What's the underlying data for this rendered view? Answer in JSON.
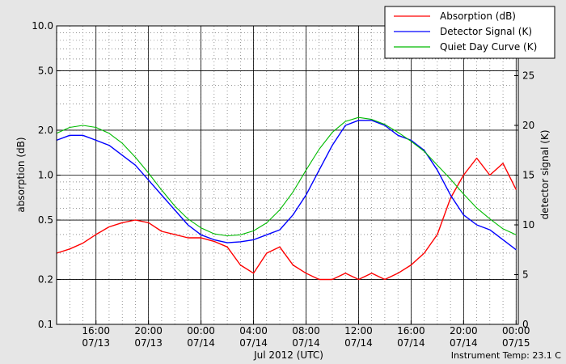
{
  "chart_data": {
    "type": "line",
    "title": "",
    "xlabel": "Jul 2012 (UTC)",
    "ylabel_left": "absorption (dB)",
    "ylabel_right": "detector signal (K)",
    "footer": "Instrument Temp: 23.1 C",
    "x_range": [
      "2012-07-13 13:00",
      "2012-07-15 00:10"
    ],
    "x_ticks": [
      {
        "time": "16:00",
        "date": "07/13"
      },
      {
        "time": "20:00",
        "date": "07/13"
      },
      {
        "time": "00:00",
        "date": "07/14"
      },
      {
        "time": "04:00",
        "date": "07/14"
      },
      {
        "time": "08:00",
        "date": "07/14"
      },
      {
        "time": "12:00",
        "date": "07/14"
      },
      {
        "time": "16:00",
        "date": "07/14"
      },
      {
        "time": "20:00",
        "date": "07/14"
      },
      {
        "time": "00:00",
        "date": "07/15"
      }
    ],
    "y_left": {
      "scale": "log",
      "range": [
        0.1,
        10.0
      ],
      "ticks": [
        "0.1",
        "0.2",
        "0.5",
        "1.0",
        "2.0",
        "5.0",
        "10.0"
      ]
    },
    "y_right": {
      "scale": "linear",
      "range": [
        0,
        30
      ],
      "ticks": [
        "0",
        "5",
        "10",
        "15",
        "20",
        "25"
      ]
    },
    "grid": true,
    "legend_position": "top-right",
    "series": [
      {
        "name": "Absorption (dB)",
        "axis": "left",
        "color": "#ff0000",
        "x": [
          "2012-07-13 13:00",
          "2012-07-13 14:00",
          "2012-07-13 15:00",
          "2012-07-13 16:00",
          "2012-07-13 17:00",
          "2012-07-13 18:00",
          "2012-07-13 19:00",
          "2012-07-13 20:00",
          "2012-07-13 21:00",
          "2012-07-13 22:00",
          "2012-07-13 23:00",
          "2012-07-14 00:00",
          "2012-07-14 01:00",
          "2012-07-14 02:00",
          "2012-07-14 03:00",
          "2012-07-14 04:00",
          "2012-07-14 05:00",
          "2012-07-14 06:00",
          "2012-07-14 07:00",
          "2012-07-14 08:00",
          "2012-07-14 09:00",
          "2012-07-14 10:00",
          "2012-07-14 11:00",
          "2012-07-14 12:00",
          "2012-07-14 13:00",
          "2012-07-14 14:00",
          "2012-07-14 15:00",
          "2012-07-14 16:00",
          "2012-07-14 17:00",
          "2012-07-14 18:00",
          "2012-07-14 19:00",
          "2012-07-14 20:00",
          "2012-07-14 21:00",
          "2012-07-14 22:00",
          "2012-07-14 23:00",
          "2012-07-15 00:00"
        ],
        "values": [
          0.3,
          0.32,
          0.35,
          0.4,
          0.45,
          0.48,
          0.5,
          0.48,
          0.42,
          0.4,
          0.38,
          0.38,
          0.36,
          0.33,
          0.25,
          0.22,
          0.3,
          0.33,
          0.25,
          0.22,
          0.2,
          0.2,
          0.22,
          0.2,
          0.22,
          0.2,
          0.22,
          0.25,
          0.3,
          0.4,
          0.7,
          1.0,
          1.3,
          1.0,
          1.2,
          0.8
        ]
      },
      {
        "name": "Detector Signal (K)",
        "axis": "right",
        "color": "#0000ff",
        "x": [
          "2012-07-13 13:00",
          "2012-07-13 14:00",
          "2012-07-13 15:00",
          "2012-07-13 16:00",
          "2012-07-13 17:00",
          "2012-07-13 18:00",
          "2012-07-13 19:00",
          "2012-07-13 20:00",
          "2012-07-13 21:00",
          "2012-07-13 22:00",
          "2012-07-13 23:00",
          "2012-07-14 00:00",
          "2012-07-14 01:00",
          "2012-07-14 02:00",
          "2012-07-14 03:00",
          "2012-07-14 04:00",
          "2012-07-14 05:00",
          "2012-07-14 06:00",
          "2012-07-14 07:00",
          "2012-07-14 08:00",
          "2012-07-14 09:00",
          "2012-07-14 10:00",
          "2012-07-14 11:00",
          "2012-07-14 12:00",
          "2012-07-14 13:00",
          "2012-07-14 14:00",
          "2012-07-14 15:00",
          "2012-07-14 16:00",
          "2012-07-14 17:00",
          "2012-07-14 18:00",
          "2012-07-14 19:00",
          "2012-07-14 20:00",
          "2012-07-14 21:00",
          "2012-07-14 22:00",
          "2012-07-14 23:00",
          "2012-07-15 00:00"
        ],
        "values": [
          18.5,
          19.0,
          19.0,
          18.5,
          18.0,
          17.0,
          16.0,
          14.5,
          13.0,
          11.5,
          10.0,
          9.0,
          8.5,
          8.2,
          8.3,
          8.5,
          9.0,
          9.5,
          11.0,
          13.0,
          15.5,
          18.0,
          20.0,
          20.5,
          20.5,
          20.0,
          19.0,
          18.5,
          17.5,
          15.5,
          13.0,
          11.0,
          10.0,
          9.5,
          8.5,
          7.5
        ]
      },
      {
        "name": "Quiet Day Curve (K)",
        "axis": "right",
        "color": "#00bb00",
        "x": [
          "2012-07-13 13:00",
          "2012-07-13 14:00",
          "2012-07-13 15:00",
          "2012-07-13 16:00",
          "2012-07-13 17:00",
          "2012-07-13 18:00",
          "2012-07-13 19:00",
          "2012-07-13 20:00",
          "2012-07-13 21:00",
          "2012-07-13 22:00",
          "2012-07-13 23:00",
          "2012-07-14 00:00",
          "2012-07-14 01:00",
          "2012-07-14 02:00",
          "2012-07-14 03:00",
          "2012-07-14 04:00",
          "2012-07-14 05:00",
          "2012-07-14 06:00",
          "2012-07-14 07:00",
          "2012-07-14 08:00",
          "2012-07-14 09:00",
          "2012-07-14 10:00",
          "2012-07-14 11:00",
          "2012-07-14 12:00",
          "2012-07-14 13:00",
          "2012-07-14 14:00",
          "2012-07-14 15:00",
          "2012-07-14 16:00",
          "2012-07-14 17:00",
          "2012-07-14 18:00",
          "2012-07-14 19:00",
          "2012-07-14 20:00",
          "2012-07-14 21:00",
          "2012-07-14 22:00",
          "2012-07-14 23:00",
          "2012-07-15 00:00"
        ],
        "values": [
          19.2,
          19.8,
          20.0,
          19.8,
          19.2,
          18.2,
          16.8,
          15.2,
          13.5,
          11.9,
          10.6,
          9.7,
          9.1,
          8.9,
          9.0,
          9.4,
          10.2,
          11.5,
          13.3,
          15.5,
          17.6,
          19.3,
          20.4,
          20.8,
          20.6,
          20.1,
          19.3,
          18.4,
          17.4,
          16.0,
          14.6,
          13.1,
          11.7,
          10.6,
          9.6,
          9.0
        ]
      }
    ]
  }
}
